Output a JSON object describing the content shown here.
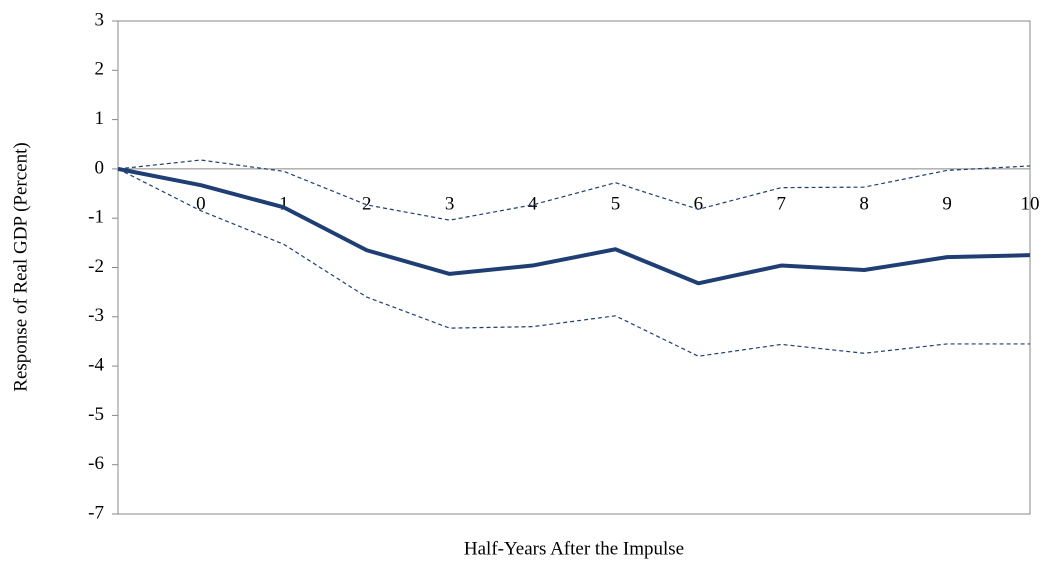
{
  "chart_data": {
    "type": "line",
    "y_label": "Response of Real GDP (Percent)",
    "x_label": "Half-Years After the Impulse",
    "categories": [
      null,
      "0",
      "1",
      "2",
      "3",
      "4",
      "5",
      "6",
      "7",
      "8",
      "9",
      "10"
    ],
    "series": [
      {
        "color": "#1f3f74",
        "dashed": false,
        "values": [
          0,
          -0.33,
          -0.78,
          -1.65,
          -2.13,
          -1.96,
          -1.63,
          -2.32,
          -1.96,
          -2.05,
          -1.79,
          -1.75
        ]
      },
      {
        "color": "#1f3f74",
        "dashed": true,
        "values": [
          0,
          0.18,
          -0.05,
          -0.73,
          -1.04,
          -0.73,
          -0.28,
          -0.82,
          -0.38,
          -0.37,
          -0.03,
          0.06
        ]
      },
      {
        "color": "#1f3f74",
        "dashed": true,
        "values": [
          0,
          -0.85,
          -1.53,
          -2.6,
          -3.23,
          -3.2,
          -2.98,
          -3.8,
          -3.56,
          -3.74,
          -3.55,
          -3.55
        ]
      }
    ],
    "ylim": [
      -7,
      3
    ],
    "yticks": [
      -7,
      -6,
      -5,
      -4,
      -3,
      -2,
      -1,
      0,
      1,
      2,
      3
    ],
    "grid": false
  }
}
